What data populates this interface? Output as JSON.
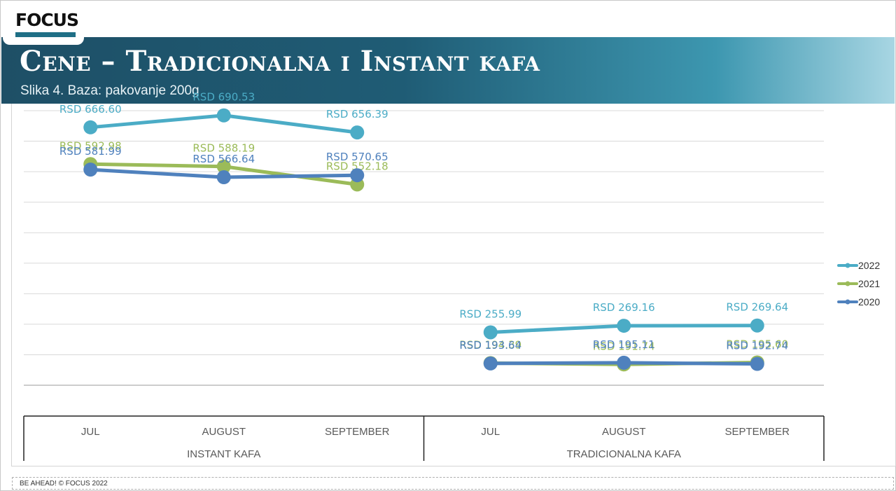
{
  "header": {
    "logo_text": "FOCUS",
    "title": "Cene – Tradicionalna i Instant kafa",
    "subtitle": "Slika 4. Baza: pakovanje 200g"
  },
  "footer": {
    "text": "BE AHEAD! © FOCUS 2022"
  },
  "colors": {
    "2022": "#4bacc6",
    "2021": "#9bbb59",
    "2020": "#4f81bd",
    "banner_dark": "#1e4f66"
  },
  "chart_data": {
    "type": "line",
    "title": "",
    "xlabel": "",
    "ylabel": "",
    "grid": true,
    "legend_position": "right",
    "ylim": [
      150,
      700
    ],
    "groups": [
      {
        "label": "INSTANT KAFA",
        "categories": [
          "JUL",
          "AUGUST",
          "SEPTEMBER"
        ]
      },
      {
        "label": "TRADICIONALNA KAFA",
        "categories": [
          "JUL",
          "AUGUST",
          "SEPTEMBER"
        ]
      }
    ],
    "series": [
      {
        "name": "2022",
        "color": "#4bacc6",
        "values": [
          666.6,
          690.53,
          656.39,
          255.99,
          269.16,
          269.64
        ],
        "labels": [
          "RSD 666.60",
          "RSD 690.53",
          "RSD 656.39",
          "RSD 255.99",
          "RSD 269.16",
          "RSD 269.64"
        ]
      },
      {
        "name": "2021",
        "color": "#9bbb59",
        "values": [
          592.98,
          588.19,
          552.18,
          194.39,
          191.74,
          195.6
        ],
        "labels": [
          "RSD 592.98",
          "RSD 588.19",
          "RSD 552.18",
          "RSD 194.39",
          "RSD 191.74",
          "RSD 195.60"
        ]
      },
      {
        "name": "2020",
        "color": "#4f81bd",
        "values": [
          581.99,
          566.64,
          570.65,
          193.64,
          195.11,
          192.74
        ],
        "labels": [
          "RSD 581.99",
          "RSD 566.64",
          "RSD 570.65",
          "RSD 193.64",
          "RSD 195.11",
          "RSD 192.74"
        ]
      }
    ]
  }
}
